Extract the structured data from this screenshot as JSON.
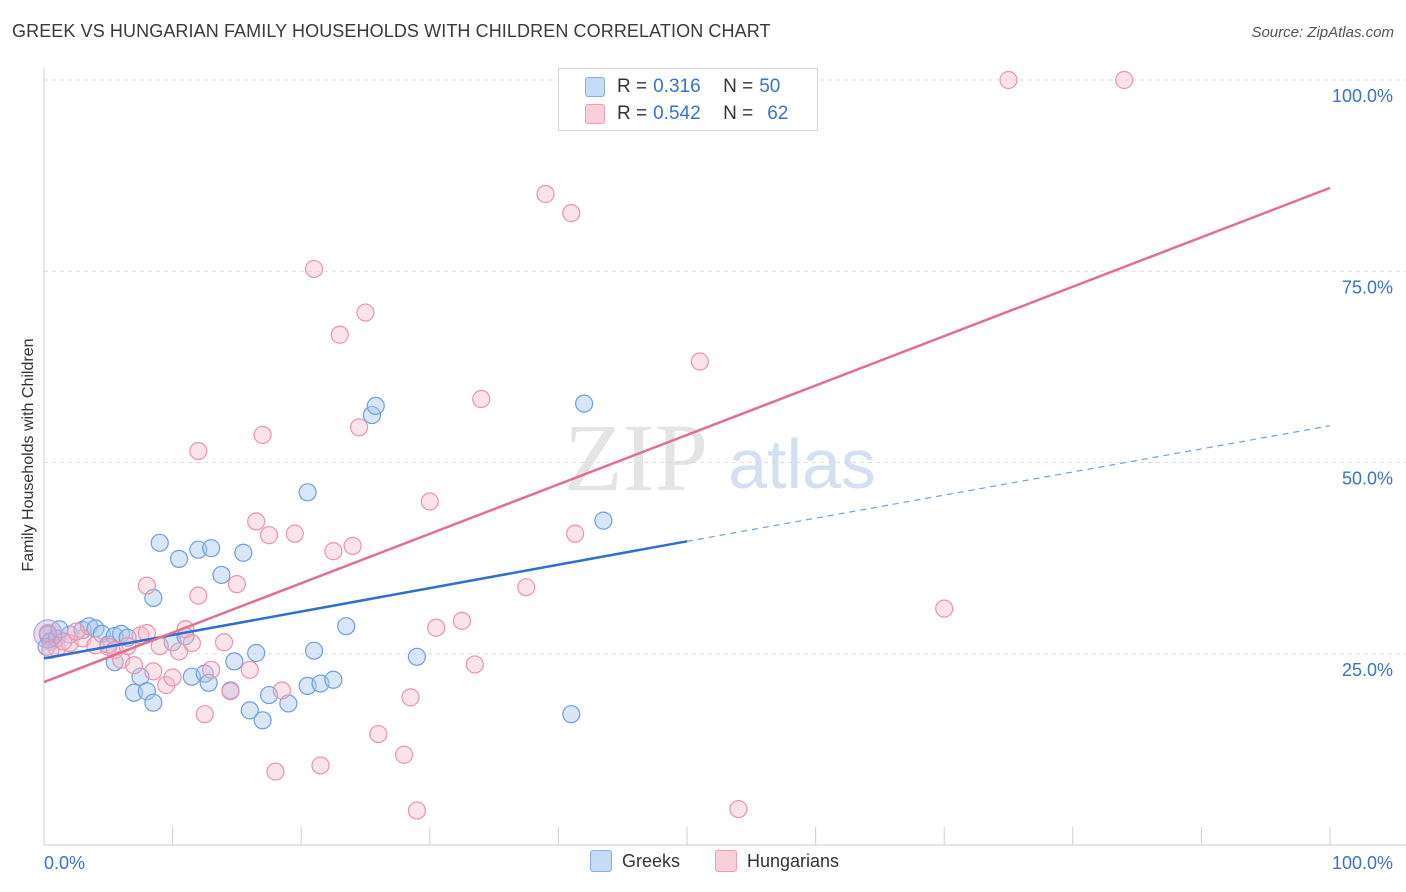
{
  "title": "GREEK VS HUNGARIAN FAMILY HOUSEHOLDS WITH CHILDREN CORRELATION CHART",
  "source": "Source: ZipAtlas.com",
  "watermark": {
    "zip": "ZIP",
    "atlas": "atlas"
  },
  "stats_legend": {
    "rows": [
      {
        "r_label": "R =",
        "r_value": "0.316",
        "n_label": "N =",
        "n_value": "50",
        "color": "#a9c8f0"
      },
      {
        "r_label": "R =",
        "r_value": "0.542",
        "n_label": "N =",
        "n_value": "62",
        "color": "#f5b8cb"
      }
    ]
  },
  "bottom_legend": [
    {
      "label": "Greeks",
      "color": "#a9c8f0"
    },
    {
      "label": "Hungarians",
      "color": "#f5b8cb"
    }
  ],
  "chart_data": {
    "type": "scatter",
    "title": "GREEK VS HUNGARIAN FAMILY HOUSEHOLDS WITH CHILDREN CORRELATION CHART",
    "xlabel": "",
    "ylabel": "Family Households with Children",
    "xlim": [
      0,
      100
    ],
    "ylim": [
      0,
      100
    ],
    "x_tick_labels": [
      "0.0%",
      "100.0%"
    ],
    "y_tick_labels": [
      "25.0%",
      "50.0%",
      "75.0%",
      "100.0%"
    ],
    "y_ticks": [
      25,
      50,
      75,
      100
    ],
    "grid": true,
    "legend_placement": "top-center",
    "colors": {
      "greeks": "#4a86d6",
      "hungarians": "#e0708f"
    },
    "series": [
      {
        "name": "Greeks",
        "points": [
          [
            0.3,
            27.5
          ],
          [
            0.5,
            26.6
          ],
          [
            1,
            27
          ],
          [
            2,
            27.5
          ],
          [
            3,
            28.1
          ],
          [
            3.5,
            28.6
          ],
          [
            4,
            28.3
          ],
          [
            4.5,
            27.6
          ],
          [
            5,
            26.2
          ],
          [
            5.5,
            27.3
          ],
          [
            5.5,
            23.9
          ],
          [
            6,
            27.6
          ],
          [
            6.5,
            27.1
          ],
          [
            7,
            19.9
          ],
          [
            7.5,
            22
          ],
          [
            8,
            20.1
          ],
          [
            8.5,
            32.3
          ],
          [
            8.5,
            18.6
          ],
          [
            9,
            39.5
          ],
          [
            10,
            26.5
          ],
          [
            10.5,
            37.4
          ],
          [
            11,
            27.3
          ],
          [
            11.5,
            22
          ],
          [
            12,
            38.6
          ],
          [
            12.5,
            22.4
          ],
          [
            12.8,
            21.2
          ],
          [
            13,
            38.8
          ],
          [
            13.8,
            35.3
          ],
          [
            14.5,
            20.2
          ],
          [
            14.8,
            24
          ],
          [
            15.5,
            38.2
          ],
          [
            16,
            17.6
          ],
          [
            16.5,
            25.1
          ],
          [
            17,
            16.3
          ],
          [
            17.5,
            19.6
          ],
          [
            19,
            18.5
          ],
          [
            20.5,
            46.1
          ],
          [
            20.5,
            20.8
          ],
          [
            21,
            25.4
          ],
          [
            21.5,
            21.1
          ],
          [
            22.5,
            21.6
          ],
          [
            23.5,
            28.6
          ],
          [
            25.5,
            56.2
          ],
          [
            25.8,
            57.4
          ],
          [
            29,
            24.6
          ],
          [
            41,
            17.1
          ],
          [
            42,
            57.7
          ],
          [
            43.5,
            42.4
          ],
          [
            0.2,
            25.9
          ],
          [
            1.2,
            28.2
          ]
        ],
        "trend": {
          "x": [
            0,
            50
          ],
          "y": [
            24.4,
            39.7
          ],
          "dashed_extension": {
            "x": [
              50,
              100
            ],
            "y": [
              39.7,
              54.8
            ]
          }
        }
      },
      {
        "name": "Hungarians",
        "points": [
          [
            0.3,
            27.7
          ],
          [
            1,
            25.7
          ],
          [
            2,
            26.4
          ],
          [
            3,
            27
          ],
          [
            4,
            26.1
          ],
          [
            5,
            25.9
          ],
          [
            5.5,
            25.5
          ],
          [
            6,
            24.2
          ],
          [
            6.5,
            26
          ],
          [
            7,
            23.5
          ],
          [
            7.5,
            27.4
          ],
          [
            8,
            27.7
          ],
          [
            8,
            33.9
          ],
          [
            8.5,
            22.7
          ],
          [
            9,
            26
          ],
          [
            9.5,
            20.9
          ],
          [
            10,
            21.9
          ],
          [
            10.5,
            25.3
          ],
          [
            11,
            28.2
          ],
          [
            11.5,
            26.4
          ],
          [
            12,
            32.6
          ],
          [
            12,
            51.5
          ],
          [
            12.5,
            17.1
          ],
          [
            13,
            22.9
          ],
          [
            14,
            26.5
          ],
          [
            14.5,
            20.1
          ],
          [
            15,
            34.1
          ],
          [
            16,
            22.9
          ],
          [
            16.5,
            42.3
          ],
          [
            17,
            53.6
          ],
          [
            17.5,
            40.5
          ],
          [
            18,
            9.6
          ],
          [
            18.5,
            20.2
          ],
          [
            19.5,
            40.7
          ],
          [
            21,
            75.3
          ],
          [
            21.5,
            10.4
          ],
          [
            22.5,
            38.4
          ],
          [
            23,
            66.7
          ],
          [
            24,
            39.1
          ],
          [
            24.5,
            54.6
          ],
          [
            25,
            69.6
          ],
          [
            26,
            14.5
          ],
          [
            28,
            11.8
          ],
          [
            28.5,
            19.3
          ],
          [
            29,
            4.5
          ],
          [
            30,
            44.9
          ],
          [
            30.5,
            28.4
          ],
          [
            32.5,
            29.3
          ],
          [
            33.5,
            23.6
          ],
          [
            34,
            58.3
          ],
          [
            37.5,
            33.7
          ],
          [
            39,
            85.1
          ],
          [
            41,
            82.6
          ],
          [
            41.3,
            40.7
          ],
          [
            51,
            63.2
          ],
          [
            54,
            4.7
          ],
          [
            70,
            30.9
          ],
          [
            75,
            100
          ],
          [
            84,
            100
          ],
          [
            0.5,
            25.5
          ],
          [
            1.5,
            26.6
          ],
          [
            2.5,
            27.9
          ]
        ],
        "trend": {
          "x": [
            0,
            100
          ],
          "y": [
            21.3,
            85.9
          ]
        }
      }
    ]
  }
}
